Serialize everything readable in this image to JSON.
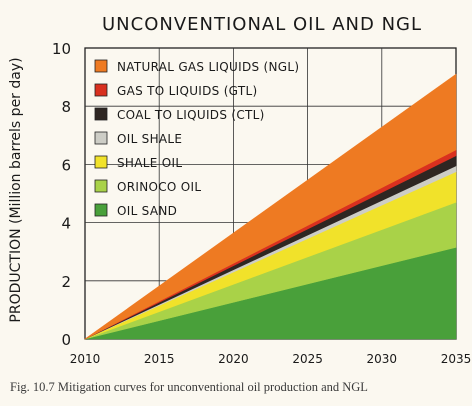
{
  "caption": "Fig. 10.7 Mitigation curves for unconventional oil production and NGL",
  "chart_data": {
    "type": "area",
    "stacked": true,
    "title": "UNCONVENTIONAL OIL AND NGL",
    "xlabel": "",
    "ylabel": "PRODUCTION (Million barrels per day)",
    "x": [
      2010,
      2035
    ],
    "xticks": [
      2010,
      2015,
      2020,
      2025,
      2030,
      2035
    ],
    "yticks": [
      0,
      2,
      4,
      6,
      8,
      10
    ],
    "ylim": [
      0,
      10
    ],
    "xlim": [
      2010,
      2035
    ],
    "grid": true,
    "legend_position": "top-left",
    "series": [
      {
        "name": "OIL SAND",
        "values": [
          0,
          3.15
        ],
        "color": "#49a03a"
      },
      {
        "name": "ORINOCO OIL",
        "values": [
          0,
          1.55
        ],
        "color": "#a9d248"
      },
      {
        "name": "SHALE OIL",
        "values": [
          0,
          1.05
        ],
        "color": "#f1e22a"
      },
      {
        "name": "OIL SHALE",
        "values": [
          0,
          0.2
        ],
        "color": "#cdcdc6"
      },
      {
        "name": "COAL TO LIQUIDS (CTL)",
        "values": [
          0,
          0.35
        ],
        "color": "#2e2622"
      },
      {
        "name": "GAS TO LIQUIDS (GTL)",
        "values": [
          0,
          0.2
        ],
        "color": "#d9301f"
      },
      {
        "name": "NATURAL GAS LIQUIDS (NGL)",
        "values": [
          0,
          2.6
        ],
        "color": "#ee7a22"
      }
    ]
  }
}
